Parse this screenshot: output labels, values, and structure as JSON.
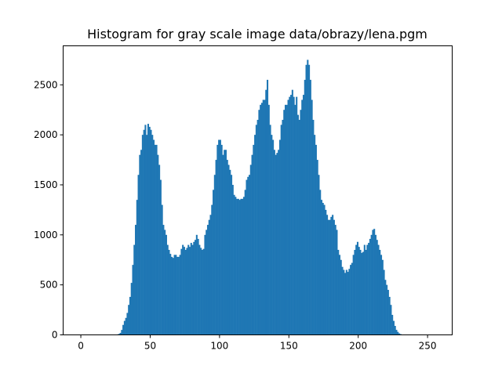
{
  "chart_data": {
    "type": "bar",
    "title": "Histogram for gray scale image data/obrazy/lena.pgm",
    "xlabel": "",
    "ylabel": "",
    "xlim": [
      -12.75,
      267.75
    ],
    "ylim": [
      0,
      2890
    ],
    "xticks": [
      0,
      50,
      100,
      150,
      200,
      250
    ],
    "yticks": [
      0,
      500,
      1000,
      1500,
      2000,
      2500
    ],
    "bar_color": "#1f77b4",
    "grid": false,
    "bins": {
      "start": 0,
      "width": 1,
      "values": [
        0,
        0,
        0,
        0,
        0,
        0,
        0,
        0,
        0,
        0,
        0,
        0,
        0,
        0,
        0,
        0,
        0,
        0,
        0,
        0,
        0,
        0,
        0,
        0,
        0,
        2,
        5,
        10,
        20,
        50,
        100,
        140,
        170,
        220,
        300,
        380,
        520,
        700,
        900,
        1100,
        1350,
        1600,
        1800,
        1850,
        2000,
        2050,
        2100,
        2000,
        2110,
        2080,
        2050,
        2000,
        1950,
        1900,
        1900,
        1800,
        1700,
        1550,
        1300,
        1100,
        1050,
        1000,
        900,
        850,
        810,
        780,
        770,
        800,
        800,
        780,
        780,
        800,
        860,
        900,
        880,
        850,
        870,
        900,
        880,
        920,
        900,
        930,
        950,
        1000,
        960,
        900,
        870,
        850,
        860,
        1000,
        1050,
        1100,
        1150,
        1200,
        1300,
        1450,
        1600,
        1750,
        1900,
        1950,
        1950,
        1900,
        1800,
        1850,
        1850,
        1750,
        1700,
        1650,
        1600,
        1500,
        1400,
        1380,
        1360,
        1360,
        1350,
        1360,
        1360,
        1380,
        1450,
        1550,
        1580,
        1600,
        1700,
        1800,
        1900,
        2000,
        2100,
        2150,
        2250,
        2300,
        2320,
        2350,
        2350,
        2450,
        2550,
        2300,
        2100,
        2000,
        1950,
        1850,
        1800,
        1820,
        1850,
        1950,
        2100,
        2150,
        2250,
        2300,
        2300,
        2350,
        2380,
        2400,
        2450,
        2380,
        2300,
        2380,
        2200,
        2150,
        2250,
        2350,
        2400,
        2550,
        2700,
        2750,
        2700,
        2550,
        2350,
        2150,
        2000,
        1900,
        1750,
        1600,
        1450,
        1350,
        1320,
        1300,
        1250,
        1200,
        1150,
        1150,
        1180,
        1200,
        1150,
        1100,
        1050,
        850,
        800,
        750,
        680,
        650,
        620,
        650,
        630,
        660,
        700,
        720,
        800,
        850,
        900,
        930,
        880,
        850,
        820,
        830,
        900,
        850,
        900,
        920,
        960,
        1000,
        1050,
        1060,
        1000,
        950,
        900,
        850,
        800,
        750,
        650,
        550,
        500,
        450,
        380,
        300,
        200,
        140,
        90,
        50,
        30,
        15,
        8,
        3,
        1,
        0,
        0,
        0,
        0,
        0,
        0,
        0,
        0,
        0,
        0,
        0,
        0,
        0,
        0,
        0,
        0,
        0,
        0,
        0,
        0,
        0,
        0,
        0
      ]
    }
  }
}
